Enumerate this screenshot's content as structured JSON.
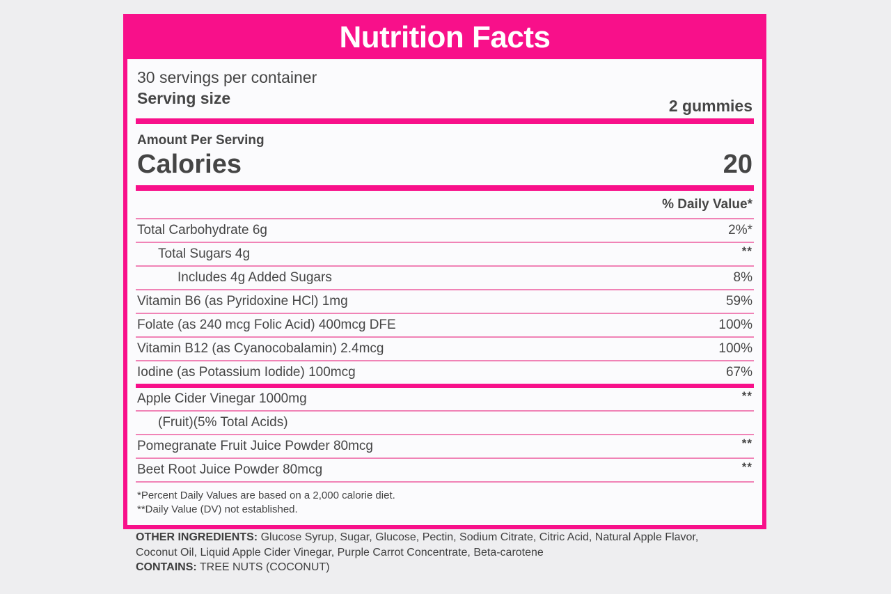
{
  "colors": {
    "accent": "#f8108a",
    "divider": "#f083b6",
    "text": "#454545",
    "page_bg": "#eeeef0",
    "panel_bg": "#fbfbfd"
  },
  "label": {
    "title": "Nutrition Facts",
    "servings_per_container": "30 servings per container",
    "serving_size_label": "Serving size",
    "serving_size_value": "2 gummies",
    "amount_per_serving": "Amount Per Serving",
    "calories_label": "Calories",
    "calories_value": "20",
    "daily_value_header": "% Daily Value*",
    "rows": [
      {
        "label": "Total Carbohydrate 6g",
        "value": "2%*",
        "indent": 0,
        "raised": false,
        "divider_after": "thin"
      },
      {
        "label": "Total Sugars 4g",
        "value": "**",
        "indent": 1,
        "raised": true,
        "divider_after": "thin"
      },
      {
        "label": "Includes 4g Added Sugars",
        "value": "8%",
        "indent": 2,
        "raised": false,
        "divider_after": "thin"
      },
      {
        "label": "Vitamin B6 (as Pyridoxine HCl) 1mg",
        "value": "59%",
        "indent": 0,
        "raised": false,
        "divider_after": "thin"
      },
      {
        "label": "Folate (as 240 mcg Folic Acid) 400mcg DFE",
        "value": "100%",
        "indent": 0,
        "raised": false,
        "divider_after": "thin"
      },
      {
        "label": "Vitamin B12 (as Cyanocobalamin) 2.4mcg",
        "value": "100%",
        "indent": 0,
        "raised": false,
        "divider_after": "thin"
      },
      {
        "label": "Iodine (as Potassium Iodide) 100mcg",
        "value": "67%",
        "indent": 0,
        "raised": false,
        "divider_after": "thick"
      },
      {
        "label": "Apple Cider Vinegar 1000mg",
        "value": "**",
        "indent": 0,
        "raised": true,
        "divider_after": "thin"
      },
      {
        "label": "(Fruit)(5% Total Acids)",
        "value": "",
        "indent": 1,
        "raised": false,
        "divider_after": "thin"
      },
      {
        "label": "Pomegranate Fruit Juice Powder 80mcg",
        "value": "**",
        "indent": 0,
        "raised": true,
        "divider_after": "thin"
      },
      {
        "label": "Beet Root Juice Powder 80mcg",
        "value": "**",
        "indent": 0,
        "raised": true,
        "divider_after": "thin"
      }
    ],
    "footnotes": [
      "*Percent Daily Values are based on a 2,000 calorie diet.",
      "**Daily Value (DV) not established."
    ]
  },
  "other_ingredients": {
    "heading": "OTHER INGREDIENTS:",
    "line1": "Glucose Syrup, Sugar, Glucose, Pectin, Sodium Citrate, Citric Acid, Natural Apple Flavor,",
    "line2": "Coconut Oil, Liquid Apple Cider Vinegar, Purple Carrot Concentrate, Beta-carotene",
    "contains_heading": "CONTAINS:",
    "contains_text": "TREE NUTS (COCONUT)"
  }
}
